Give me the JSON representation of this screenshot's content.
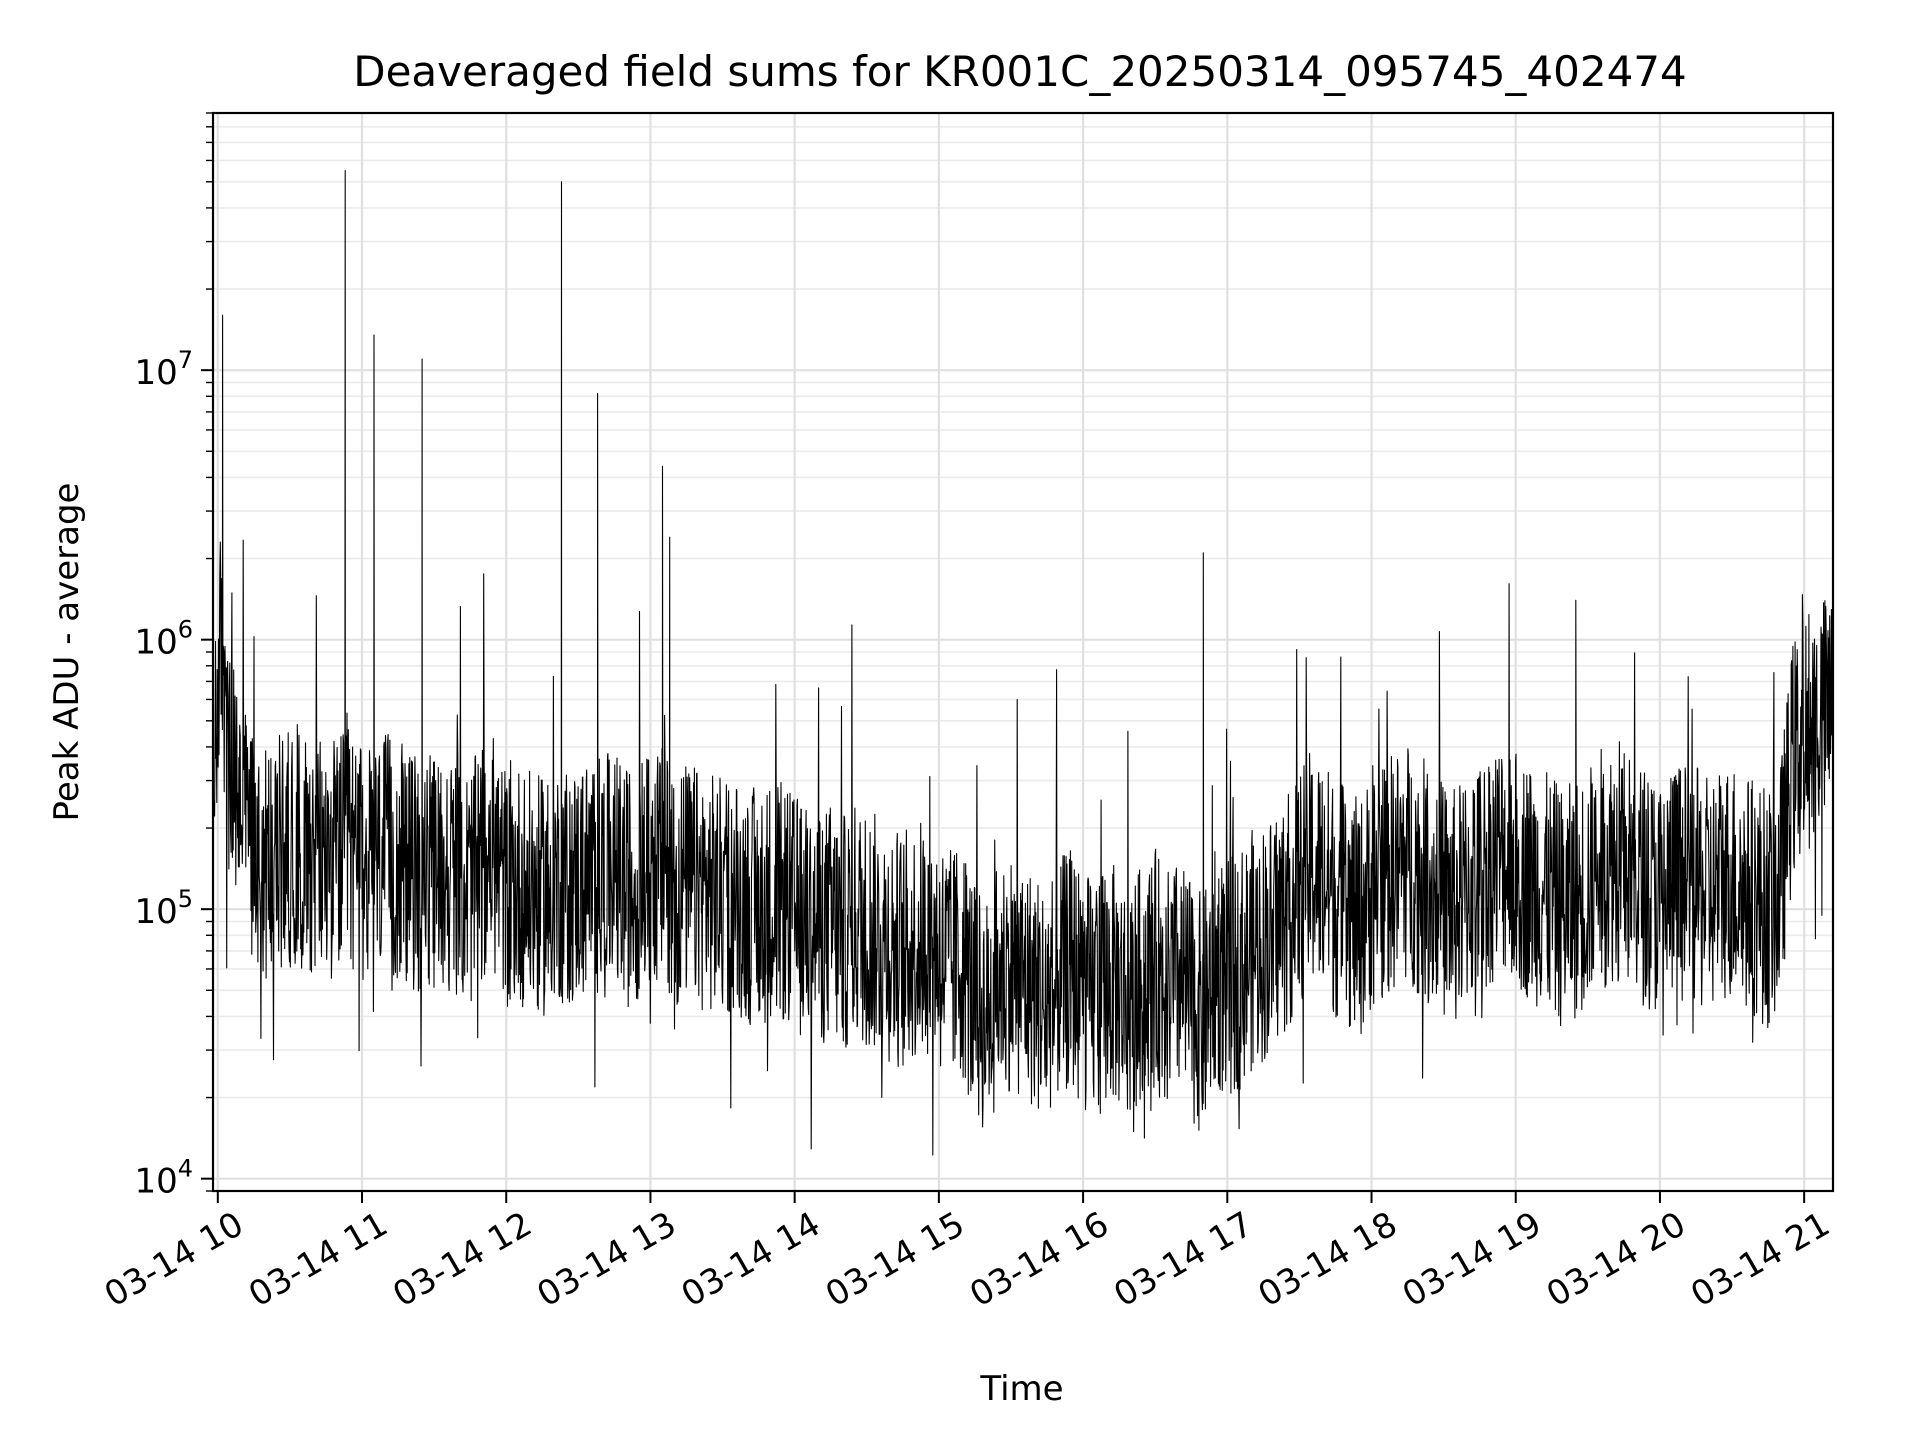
{
  "chart_data": {
    "type": "line",
    "title": "Deaveraged field sums for KR001C_20250314_095745_402474",
    "xlabel": "Time",
    "ylabel": "Peak ADU - average",
    "yscale": "log",
    "ylim": [
      9000,
      90000000
    ],
    "xlim": [
      "2025-03-14 09:58",
      "2025-03-14 21:12"
    ],
    "grid": true,
    "line_color": "#000000",
    "x_ticks": [
      "03-14 10",
      "03-14 11",
      "03-14 12",
      "03-14 13",
      "03-14 14",
      "03-14 15",
      "03-14 16",
      "03-14 17",
      "03-14 18",
      "03-14 19",
      "03-14 20",
      "03-14 21"
    ],
    "y_ticks": [
      {
        "base": "10",
        "exp": "4",
        "value": 10000
      },
      {
        "base": "10",
        "exp": "5",
        "value": 100000
      },
      {
        "base": "10",
        "exp": "6",
        "value": 1000000
      },
      {
        "base": "10",
        "exp": "7",
        "value": 10000000
      }
    ],
    "series": [
      {
        "x": [
          "2025-03-14 09:58",
          "2025-03-14 10:00",
          "2025-03-14 10:02",
          "2025-03-14 10:03",
          "2025-03-14 10:05",
          "2025-03-14 10:10",
          "2025-03-14 10:15",
          "2025-03-14 10:20",
          "2025-03-14 10:25",
          "2025-03-14 10:30",
          "2025-03-14 10:35",
          "2025-03-14 10:40",
          "2025-03-14 10:45",
          "2025-03-14 10:50",
          "2025-03-14 10:55",
          "2025-03-14 11:00",
          "2025-03-14 11:05",
          "2025-03-14 11:10",
          "2025-03-14 11:15",
          "2025-03-14 11:20",
          "2025-03-14 11:25",
          "2025-03-14 11:30",
          "2025-03-14 11:35",
          "2025-03-14 11:40",
          "2025-03-14 11:45",
          "2025-03-14 11:50",
          "2025-03-14 11:55",
          "2025-03-14 12:00",
          "2025-03-14 12:05",
          "2025-03-14 12:10",
          "2025-03-14 12:15",
          "2025-03-14 12:20",
          "2025-03-14 12:25",
          "2025-03-14 12:30",
          "2025-03-14 12:35",
          "2025-03-14 12:40",
          "2025-03-14 12:45",
          "2025-03-14 12:50",
          "2025-03-14 12:55",
          "2025-03-14 13:00",
          "2025-03-14 13:05",
          "2025-03-14 13:10",
          "2025-03-14 13:15",
          "2025-03-14 13:20",
          "2025-03-14 13:25",
          "2025-03-14 13:30",
          "2025-03-14 13:35",
          "2025-03-14 13:40",
          "2025-03-14 13:45",
          "2025-03-14 13:50",
          "2025-03-14 13:55",
          "2025-03-14 14:00",
          "2025-03-14 14:05",
          "2025-03-14 14:10",
          "2025-03-14 14:15",
          "2025-03-14 14:20",
          "2025-03-14 14:25",
          "2025-03-14 14:30",
          "2025-03-14 14:35",
          "2025-03-14 14:40",
          "2025-03-14 14:45",
          "2025-03-14 14:50",
          "2025-03-14 14:55",
          "2025-03-14 15:00",
          "2025-03-14 15:05",
          "2025-03-14 15:10",
          "2025-03-14 15:15",
          "2025-03-14 15:20",
          "2025-03-14 15:25",
          "2025-03-14 15:30",
          "2025-03-14 15:35",
          "2025-03-14 15:40",
          "2025-03-14 15:45",
          "2025-03-14 15:50",
          "2025-03-14 15:55",
          "2025-03-14 16:00",
          "2025-03-14 16:05",
          "2025-03-14 16:10",
          "2025-03-14 16:15",
          "2025-03-14 16:20",
          "2025-03-14 16:25",
          "2025-03-14 16:30",
          "2025-03-14 16:35",
          "2025-03-14 16:40",
          "2025-03-14 16:45",
          "2025-03-14 16:50",
          "2025-03-14 16:55",
          "2025-03-14 17:00",
          "2025-03-14 17:05",
          "2025-03-14 17:10",
          "2025-03-14 17:15",
          "2025-03-14 17:20",
          "2025-03-14 17:25",
          "2025-03-14 17:30",
          "2025-03-14 17:35",
          "2025-03-14 17:40",
          "2025-03-14 17:45",
          "2025-03-14 17:50",
          "2025-03-14 17:55",
          "2025-03-14 18:00",
          "2025-03-14 18:05",
          "2025-03-14 18:10",
          "2025-03-14 18:15",
          "2025-03-14 18:20",
          "2025-03-14 18:25",
          "2025-03-14 18:30",
          "2025-03-14 18:35",
          "2025-03-14 18:40",
          "2025-03-14 18:45",
          "2025-03-14 18:50",
          "2025-03-14 18:55",
          "2025-03-14 19:00",
          "2025-03-14 19:05",
          "2025-03-14 19:10",
          "2025-03-14 19:15",
          "2025-03-14 19:20",
          "2025-03-14 19:25",
          "2025-03-14 19:30",
          "2025-03-14 19:35",
          "2025-03-14 19:40",
          "2025-03-14 19:45",
          "2025-03-14 19:50",
          "2025-03-14 19:55",
          "2025-03-14 20:00",
          "2025-03-14 20:05",
          "2025-03-14 20:10",
          "2025-03-14 20:15",
          "2025-03-14 20:20",
          "2025-03-14 20:25",
          "2025-03-14 20:30",
          "2025-03-14 20:35",
          "2025-03-14 20:40",
          "2025-03-14 20:45",
          "2025-03-14 20:50",
          "2025-03-14 20:55",
          "2025-03-14 21:00",
          "2025-03-14 21:05",
          "2025-03-14 21:12"
        ],
        "values": [
          180000,
          700000,
          1100000,
          400000,
          300000,
          250000,
          180000,
          150000,
          160000,
          170000,
          180000,
          160000,
          150000,
          160000,
          170000,
          140000,
          150000,
          160000,
          150000,
          140000,
          130000,
          135000,
          140000,
          130000,
          120000,
          150000,
          160000,
          120000,
          125000,
          115000,
          110000,
          130000,
          120000,
          125000,
          135000,
          130000,
          140000,
          120000,
          130000,
          140000,
          145000,
          130000,
          125000,
          120000,
          115000,
          110000,
          115000,
          105000,
          100000,
          110000,
          105000,
          95000,
          90000,
          85000,
          90000,
          80000,
          90000,
          85000,
          80000,
          75000,
          70000,
          75000,
          80000,
          70000,
          60000,
          65000,
          45000,
          40000,
          55000,
          60000,
          55000,
          50000,
          45000,
          55000,
          60000,
          50000,
          45000,
          55000,
          50000,
          45000,
          55000,
          60000,
          50000,
          55000,
          45000,
          40000,
          60000,
          55000,
          60000,
          70000,
          75000,
          85000,
          100000,
          120000,
          140000,
          130000,
          110000,
          100000,
          90000,
          120000,
          130000,
          140000,
          150000,
          135000,
          120000,
          110000,
          100000,
          120000,
          130000,
          150000,
          160000,
          140000,
          130000,
          120000,
          110000,
          100000,
          110000,
          120000,
          140000,
          150000,
          145000,
          130000,
          120000,
          110000,
          125000,
          130000,
          120000,
          110000,
          125000,
          130000,
          115000,
          110000,
          100000,
          120000,
          350000,
          450000,
          500000,
          550000
        ]
      }
    ],
    "spikes": [
      {
        "x": "2025-03-14 10:02",
        "value": 16000000
      },
      {
        "x": "2025-03-14 10:53",
        "value": 55000000
      },
      {
        "x": "2025-03-14 11:05",
        "value": 13500000
      },
      {
        "x": "2025-03-14 11:25",
        "value": 11000000
      },
      {
        "x": "2025-03-14 12:23",
        "value": 50000000
      },
      {
        "x": "2025-03-14 12:38",
        "value": 8200000
      },
      {
        "x": "2025-03-14 13:05",
        "value": 4400000
      },
      {
        "x": "2025-03-14 13:08",
        "value": 2400000
      },
      {
        "x": "2025-03-14 16:50",
        "value": 2100000
      },
      {
        "x": "2025-03-14 19:25",
        "value": 1400000
      }
    ]
  }
}
